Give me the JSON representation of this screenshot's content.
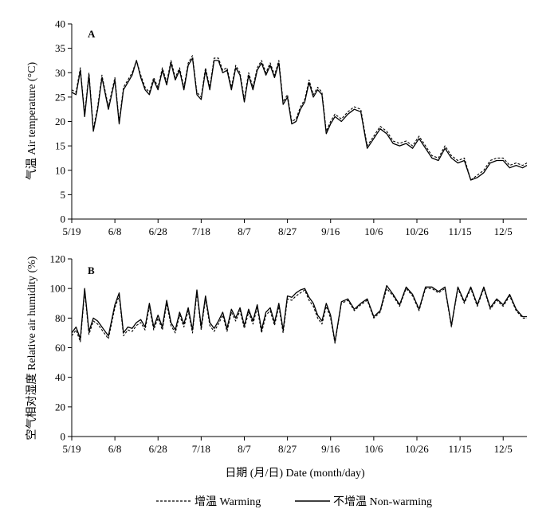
{
  "xlabel": "日期 (月/日)  Date (month/day)",
  "x_ticks": [
    "5/19",
    "6/8",
    "6/28",
    "7/18",
    "8/7",
    "8/27",
    "9/16",
    "10/6",
    "10/26",
    "11/15",
    "12/5"
  ],
  "legend": [
    {
      "name": "增温 Warming",
      "style": "dashed",
      "color": "#000000"
    },
    {
      "name": "不增温 Non-warming",
      "style": "solid",
      "color": "#000000"
    }
  ],
  "legend_placement": "bottom",
  "chart_data": [
    {
      "type": "line",
      "panel": "A",
      "ylabel": "气温  Air temperature (°C)",
      "ylim": [
        0,
        40
      ],
      "yticks": [
        0,
        5,
        10,
        15,
        20,
        25,
        30,
        35,
        40
      ],
      "x_unit": "day offset from 5/19",
      "xlim": [
        0,
        211
      ],
      "grid": false,
      "series": [
        {
          "name": "增温 Warming",
          "x": [
            0,
            2,
            4,
            6,
            8,
            10,
            12,
            14,
            17,
            20,
            22,
            24,
            26,
            28,
            30,
            32,
            34,
            36,
            38,
            40,
            42,
            44,
            46,
            48,
            50,
            52,
            54,
            56,
            58,
            60,
            62,
            64,
            66,
            68,
            70,
            72,
            74,
            76,
            78,
            80,
            82,
            84,
            86,
            88,
            90,
            92,
            94,
            96,
            98,
            100,
            102,
            104,
            106,
            108,
            110,
            112,
            114,
            116,
            118,
            120,
            122,
            125,
            128,
            131,
            134,
            137,
            140,
            143,
            146,
            149,
            152,
            155,
            158,
            161,
            164,
            167,
            170,
            173,
            176,
            179,
            182,
            185,
            188,
            191,
            194,
            197,
            200,
            203,
            206,
            209,
            211
          ],
          "values": [
            26.5,
            26,
            31,
            21.5,
            30,
            18.5,
            23,
            29.5,
            23,
            29,
            20,
            27,
            28.5,
            30,
            32.5,
            29.5,
            27,
            26,
            29,
            27,
            31,
            28,
            32.5,
            29,
            31,
            27,
            32,
            33.5,
            26,
            25,
            31,
            27,
            33,
            33,
            30.5,
            31,
            27,
            31.5,
            30,
            24.5,
            30,
            27,
            31,
            32.5,
            30,
            32,
            29.5,
            32.5,
            24,
            25.5,
            20,
            20.5,
            23,
            24.5,
            28.5,
            25.5,
            27,
            26,
            18,
            20,
            21.5,
            20.5,
            22,
            23,
            22.5,
            15,
            17,
            19,
            18,
            16,
            15.5,
            16,
            15,
            17,
            15,
            13,
            12.5,
            15,
            13,
            12,
            12.5,
            8,
            9,
            10,
            12,
            12.5,
            12.5,
            11,
            11.5,
            11,
            11.5
          ]
        },
        {
          "name": "不增温 Non-warming",
          "x": [
            0,
            2,
            4,
            6,
            8,
            10,
            12,
            14,
            17,
            20,
            22,
            24,
            26,
            28,
            30,
            32,
            34,
            36,
            38,
            40,
            42,
            44,
            46,
            48,
            50,
            52,
            54,
            56,
            58,
            60,
            62,
            64,
            66,
            68,
            70,
            72,
            74,
            76,
            78,
            80,
            82,
            84,
            86,
            88,
            90,
            92,
            94,
            96,
            98,
            100,
            102,
            104,
            106,
            108,
            110,
            112,
            114,
            116,
            118,
            120,
            122,
            125,
            128,
            131,
            134,
            137,
            140,
            143,
            146,
            149,
            152,
            155,
            158,
            161,
            164,
            167,
            170,
            173,
            176,
            179,
            182,
            185,
            188,
            191,
            194,
            197,
            200,
            203,
            206,
            209,
            211
          ],
          "values": [
            26,
            25.5,
            30.5,
            21,
            29.5,
            18,
            22.5,
            29,
            22.5,
            28.5,
            19.5,
            26.5,
            28,
            29.5,
            32.5,
            29,
            26.5,
            25.5,
            28.5,
            26.5,
            30.5,
            27.5,
            32,
            28.5,
            30.5,
            26.5,
            31.5,
            33,
            25.5,
            24.5,
            30.5,
            26.5,
            32.5,
            32.5,
            30,
            30.5,
            26.5,
            31,
            29.5,
            24,
            29.5,
            26.5,
            30.5,
            32,
            29.5,
            31.5,
            29,
            32,
            23.5,
            25,
            19.5,
            20,
            22.5,
            24,
            28,
            25,
            26.5,
            25.5,
            17.5,
            19.5,
            21,
            20,
            21.5,
            22.5,
            22,
            14.5,
            16.5,
            18.5,
            17.5,
            15.5,
            15,
            15.5,
            14.5,
            16.5,
            14.5,
            12.5,
            12,
            14.5,
            12.5,
            11.5,
            12,
            8,
            8.5,
            9.5,
            11.5,
            12,
            12,
            10.5,
            11,
            10.5,
            11
          ]
        }
      ]
    },
    {
      "type": "line",
      "panel": "B",
      "ylabel": "空气相对湿度  Relative air humidity (%)",
      "ylim": [
        0,
        120
      ],
      "yticks": [
        0,
        20,
        40,
        60,
        80,
        100,
        120
      ],
      "x_unit": "day offset from 5/19",
      "xlim": [
        0,
        211
      ],
      "grid": false,
      "series": [
        {
          "name": "增温 Warming",
          "x": [
            0,
            2,
            4,
            6,
            8,
            10,
            12,
            14,
            17,
            20,
            22,
            24,
            26,
            28,
            30,
            32,
            34,
            36,
            38,
            40,
            42,
            44,
            46,
            48,
            50,
            52,
            54,
            56,
            58,
            60,
            62,
            64,
            66,
            68,
            70,
            72,
            74,
            76,
            78,
            80,
            82,
            84,
            86,
            88,
            90,
            92,
            94,
            96,
            98,
            100,
            102,
            104,
            106,
            108,
            110,
            112,
            114,
            116,
            118,
            120,
            122,
            125,
            128,
            131,
            134,
            137,
            140,
            143,
            146,
            149,
            152,
            155,
            158,
            161,
            164,
            167,
            170,
            173,
            176,
            179,
            182,
            185,
            188,
            191,
            194,
            197,
            200,
            203,
            206,
            209,
            211
          ],
          "values": [
            68,
            72,
            64,
            98,
            69,
            78,
            76,
            72,
            66,
            87,
            95,
            68,
            72,
            71,
            75,
            77,
            72,
            88,
            72,
            80,
            72,
            90,
            75,
            70,
            82,
            74,
            85,
            70,
            97,
            72,
            93,
            75,
            71,
            76,
            82,
            71,
            84,
            78,
            85,
            73,
            84,
            76,
            87,
            70,
            82,
            85,
            75,
            88,
            70,
            93,
            92,
            95,
            97,
            99,
            92,
            88,
            80,
            76,
            88,
            80,
            63,
            90,
            92,
            85,
            89,
            92,
            80,
            84,
            100,
            95,
            88,
            100,
            95,
            85,
            100,
            100,
            97,
            100,
            74,
            100,
            90,
            100,
            88,
            100,
            86,
            92,
            88,
            95,
            85,
            80,
            80
          ]
        },
        {
          "name": "不增温 Non-warming",
          "x": [
            0,
            2,
            4,
            6,
            8,
            10,
            12,
            14,
            17,
            20,
            22,
            24,
            26,
            28,
            30,
            32,
            34,
            36,
            38,
            40,
            42,
            44,
            46,
            48,
            50,
            52,
            54,
            56,
            58,
            60,
            62,
            64,
            66,
            68,
            70,
            72,
            74,
            76,
            78,
            80,
            82,
            84,
            86,
            88,
            90,
            92,
            94,
            96,
            98,
            100,
            102,
            104,
            106,
            108,
            110,
            112,
            114,
            116,
            118,
            120,
            122,
            125,
            128,
            131,
            134,
            137,
            140,
            143,
            146,
            149,
            152,
            155,
            158,
            161,
            164,
            167,
            170,
            173,
            176,
            179,
            182,
            185,
            188,
            191,
            194,
            197,
            200,
            203,
            206,
            209,
            211
          ],
          "values": [
            70,
            74,
            66,
            100,
            71,
            80,
            78,
            74,
            68,
            89,
            97,
            70,
            74,
            73,
            77,
            79,
            74,
            90,
            74,
            82,
            74,
            92,
            77,
            72,
            84,
            76,
            87,
            72,
            99,
            74,
            95,
            77,
            73,
            78,
            84,
            73,
            86,
            80,
            87,
            75,
            86,
            78,
            89,
            72,
            84,
            87,
            77,
            90,
            72,
            95,
            94,
            97,
            99,
            100,
            94,
            90,
            82,
            78,
            90,
            82,
            64,
            91,
            93,
            86,
            90,
            93,
            81,
            85,
            102,
            96,
            89,
            101,
            96,
            86,
            101,
            101,
            98,
            101,
            75,
            101,
            91,
            101,
            89,
            101,
            87,
            93,
            89,
            96,
            86,
            81,
            81
          ]
        }
      ]
    }
  ]
}
